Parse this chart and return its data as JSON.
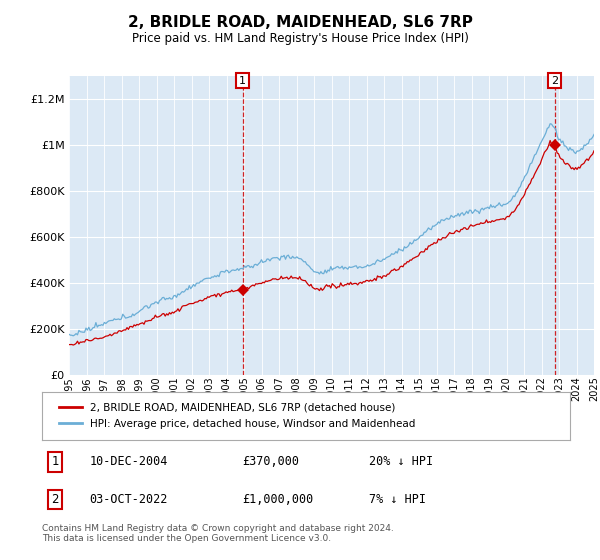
{
  "title": "2, BRIDLE ROAD, MAIDENHEAD, SL6 7RP",
  "subtitle": "Price paid vs. HM Land Registry's House Price Index (HPI)",
  "ylim": [
    0,
    1300000
  ],
  "yticks": [
    0,
    200000,
    400000,
    600000,
    800000,
    1000000,
    1200000
  ],
  "bg_color": "#dce9f5",
  "hpi_color": "#6baed6",
  "price_color": "#cc0000",
  "vline_color": "#cc0000",
  "sale1_year": 2004.92,
  "sale1_price": 370000,
  "sale2_year": 2022.75,
  "sale2_price": 1000000,
  "legend_label_price": "2, BRIDLE ROAD, MAIDENHEAD, SL6 7RP (detached house)",
  "legend_label_hpi": "HPI: Average price, detached house, Windsor and Maidenhead",
  "footnote": "Contains HM Land Registry data © Crown copyright and database right 2024.\nThis data is licensed under the Open Government Licence v3.0.",
  "table_row1_label": "1",
  "table_row1_date": "10-DEC-2004",
  "table_row1_price": "£370,000",
  "table_row1_hpi": "20% ↓ HPI",
  "table_row2_label": "2",
  "table_row2_date": "03-OCT-2022",
  "table_row2_price": "£1,000,000",
  "table_row2_hpi": "7% ↓ HPI",
  "xmin": 1995,
  "xmax": 2025
}
